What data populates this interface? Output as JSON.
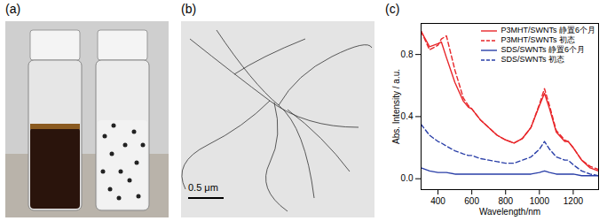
{
  "panels": [
    {
      "label": "(a)"
    },
    {
      "label": "(b)",
      "scale_bar": "0.5 μm"
    }
  ],
  "chart_data": {
    "type": "line",
    "panel": "(c)",
    "x_label": "Wavelength/nm",
    "y_label": "Abs. Intensity / a.u.",
    "xlim": [
      300,
      1350
    ],
    "ylim": [
      -0.07,
      1.0
    ],
    "xticks": [
      400,
      600,
      800,
      1000,
      1200
    ],
    "yticks": [
      {
        "value": 0,
        "label": "0.0"
      },
      0.4,
      0.8
    ],
    "grid": false,
    "legend": "upper right",
    "x": [
      300,
      350,
      400,
      420,
      450,
      500,
      550,
      580,
      600,
      650,
      700,
      750,
      800,
      850,
      900,
      950,
      1000,
      1030,
      1060,
      1100,
      1150,
      1170,
      1200,
      1250,
      1300,
      1350
    ],
    "series": [
      {
        "name": "P3MHT/SWNTs 静置6个月",
        "color": "#e8262a",
        "line_style": "solid",
        "values": [
          0.95,
          0.85,
          0.87,
          0.88,
          0.78,
          0.62,
          0.5,
          0.46,
          0.45,
          0.38,
          0.33,
          0.28,
          0.25,
          0.23,
          0.26,
          0.33,
          0.47,
          0.55,
          0.45,
          0.3,
          0.24,
          0.24,
          0.2,
          0.12,
          0.07,
          0.05
        ]
      },
      {
        "name": "P3MHT/SWNTs 初态",
        "color": "#e8262a",
        "line_style": "dashed",
        "values": [
          0.95,
          0.83,
          0.86,
          0.9,
          0.92,
          0.7,
          0.52,
          0.47,
          0.45,
          0.38,
          0.33,
          0.28,
          0.25,
          0.23,
          0.26,
          0.33,
          0.48,
          0.58,
          0.47,
          0.31,
          0.25,
          0.24,
          0.2,
          0.12,
          0.08,
          0.06
        ]
      },
      {
        "name": "SDS/SWNTs 静置6个月",
        "color": "#2a3fa8",
        "line_style": "solid",
        "values": [
          0.07,
          0.05,
          0.04,
          0.04,
          0.04,
          0.03,
          0.03,
          0.03,
          0.03,
          0.03,
          0.03,
          0.03,
          0.03,
          0.03,
          0.03,
          0.03,
          0.04,
          0.05,
          0.04,
          0.03,
          0.03,
          0.03,
          0.03,
          0.02,
          0.02,
          0.02
        ]
      },
      {
        "name": "SDS/SWNTs 初态",
        "color": "#2a3fa8",
        "line_style": "dashed",
        "values": [
          0.35,
          0.28,
          0.24,
          0.23,
          0.21,
          0.18,
          0.16,
          0.15,
          0.15,
          0.13,
          0.12,
          0.11,
          0.1,
          0.1,
          0.12,
          0.14,
          0.19,
          0.24,
          0.19,
          0.14,
          0.12,
          0.12,
          0.09,
          0.05,
          0.03,
          0.02
        ]
      }
    ]
  }
}
